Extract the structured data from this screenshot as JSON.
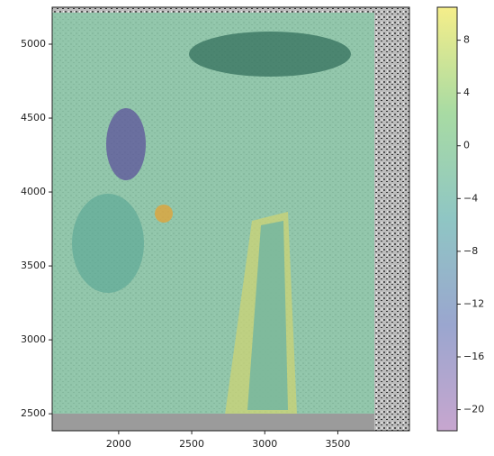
{
  "chart_data": {
    "type": "image",
    "xlim": [
      1545,
      3990
    ],
    "ylim": [
      2385,
      5250
    ],
    "xticks": [
      2000,
      2500,
      3000,
      3500
    ],
    "yticks": [
      2500,
      3000,
      3500,
      4000,
      4500,
      5000
    ],
    "colorbar": {
      "lim": [
        -21.6,
        10.5
      ],
      "ticks": [
        8,
        4,
        0,
        {
          "value": -4,
          "label": "−4"
        },
        {
          "value": -8,
          "label": "−8"
        },
        {
          "value": -12,
          "label": "−12"
        },
        {
          "value": -16,
          "label": "−16"
        },
        {
          "value": -20,
          "label": "−20"
        }
      ]
    }
  }
}
